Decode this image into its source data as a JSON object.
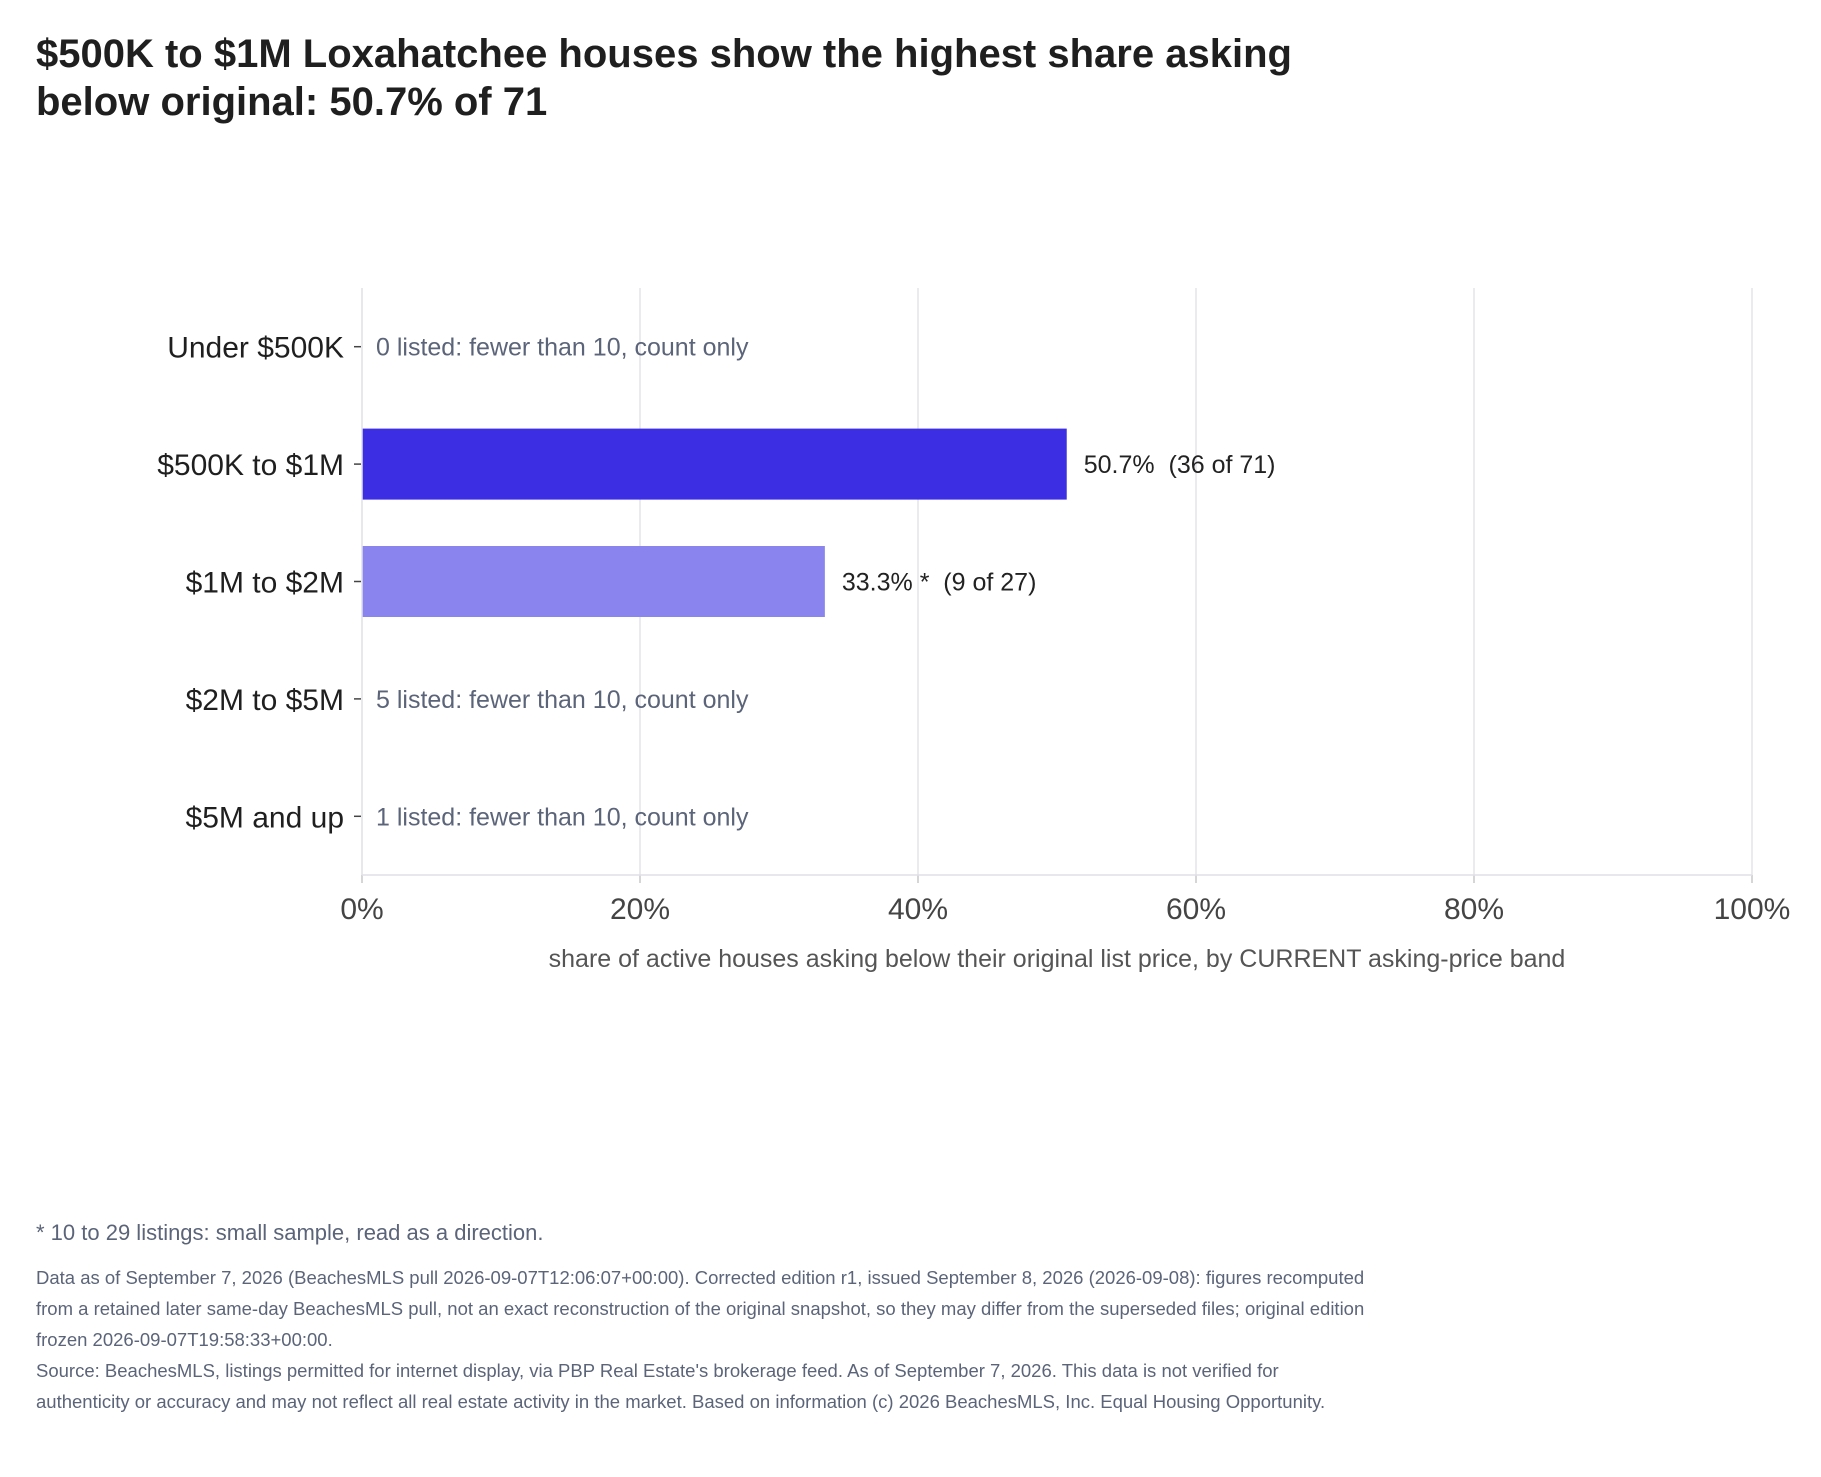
{
  "chart_data": {
    "type": "bar",
    "orientation": "horizontal",
    "title": "$500K to $1M Loxahatchee houses show the highest share asking below original: 50.7% of 71",
    "xlabel": "share of active houses asking below their original list price, by CURRENT asking-price band",
    "ylabel": "",
    "xlim": [
      0,
      100
    ],
    "x_ticks": [
      {
        "value": 0,
        "label": "0%"
      },
      {
        "value": 20,
        "label": "20%"
      },
      {
        "value": 40,
        "label": "40%"
      },
      {
        "value": 60,
        "label": "60%"
      },
      {
        "value": 80,
        "label": "80%"
      },
      {
        "value": 100,
        "label": "100%"
      }
    ],
    "grid": "vertical",
    "categories": [
      "Under $500K",
      "$500K to $1M",
      "$1M to $2M",
      "$2M to $5M",
      "$5M and up"
    ],
    "bars": [
      {
        "category": "Under $500K",
        "value": null,
        "label": "0 listed: fewer than 10, count only",
        "color": ""
      },
      {
        "category": "$500K to $1M",
        "value": 50.7,
        "label": "50.7%  (36 of 71)",
        "color": "#3c2fe3"
      },
      {
        "category": "$1M to $2M",
        "value": 33.3,
        "label": "33.3% *  (9 of 27)",
        "color": "#8a84ee"
      },
      {
        "category": "$2M to $5M",
        "value": null,
        "label": "5 listed: fewer than 10, count only",
        "color": ""
      },
      {
        "category": "$5M and up",
        "value": null,
        "label": "1 listed: fewer than 10, count only",
        "color": ""
      }
    ]
  },
  "footnotes": {
    "sample_note": "* 10 to 29 listings: small sample, read as a direction.",
    "data_note": "Data as of September 7, 2026 (BeachesMLS pull 2026-09-07T12:06:07+00:00). Corrected edition r1, issued September 8, 2026 (2026-09-08): figures recomputed from a retained later same-day BeachesMLS pull, not an exact reconstruction of the original snapshot, so they may differ from the superseded files; original edition frozen 2026-09-07T19:58:33+00:00.",
    "source_note": "Source: BeachesMLS, listings permitted for internet display, via PBP Real Estate's brokerage feed. As of September 7, 2026. This data is not verified for authenticity or accuracy and may not reflect all real estate activity in the market. Based on information (c) 2026 BeachesMLS, Inc. Equal Housing Opportunity."
  }
}
